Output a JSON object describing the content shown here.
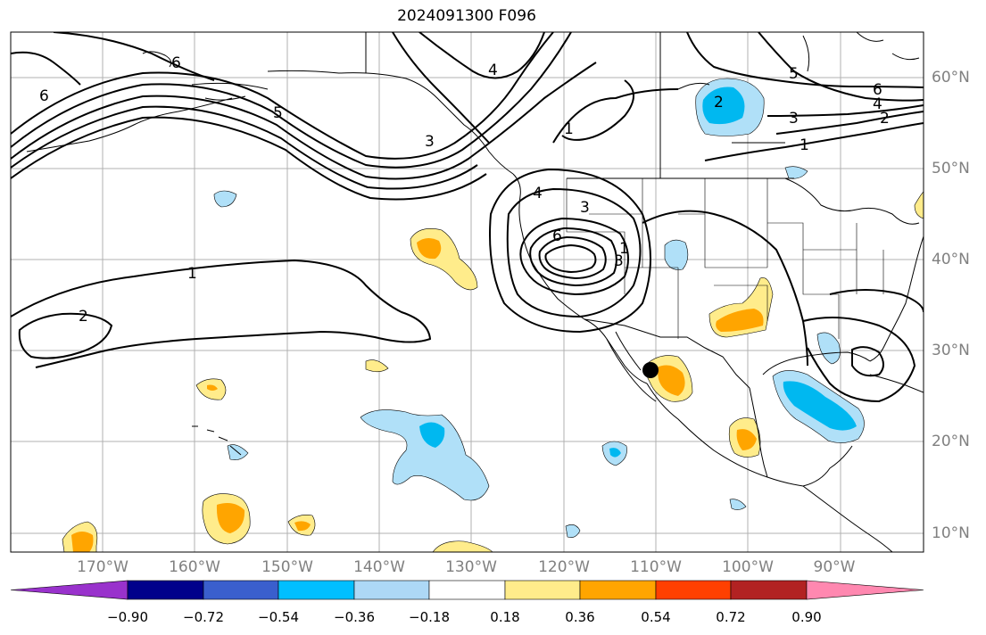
{
  "title": "2024091300 F096",
  "lat_labels": [
    "60°N",
    "50°N",
    "40°N",
    "30°N",
    "20°N",
    "10°N"
  ],
  "lon_labels": [
    "170°W",
    "160°W",
    "150°W",
    "140°W",
    "130°W",
    "120°W",
    "110°W",
    "100°W",
    "90°W"
  ],
  "contour_labels": [
    "6",
    "6",
    "5",
    "4",
    "3",
    "1",
    "1",
    "2",
    "4",
    "3",
    "6",
    "3",
    "1",
    "2",
    "5",
    "6",
    "4",
    "3",
    "2",
    "1"
  ],
  "colorbar": {
    "ticks": [
      "−0.90",
      "−0.72",
      "−0.54",
      "−0.36",
      "−0.18",
      "0.18",
      "0.36",
      "0.54",
      "0.72",
      "0.90"
    ],
    "colors": [
      "#9932cc",
      "#00008b",
      "#3a5fcd",
      "#00bfff",
      "#add8f6",
      "#ffffff",
      "#ffec8b",
      "#ffa500",
      "#ff4000",
      "#b22222",
      "#ff88b0"
    ]
  },
  "fill_colors": {
    "light_blue": "#b0e0f8",
    "blue": "#00b8f0",
    "light_yellow": "#ffec8b",
    "orange": "#ffa500"
  }
}
